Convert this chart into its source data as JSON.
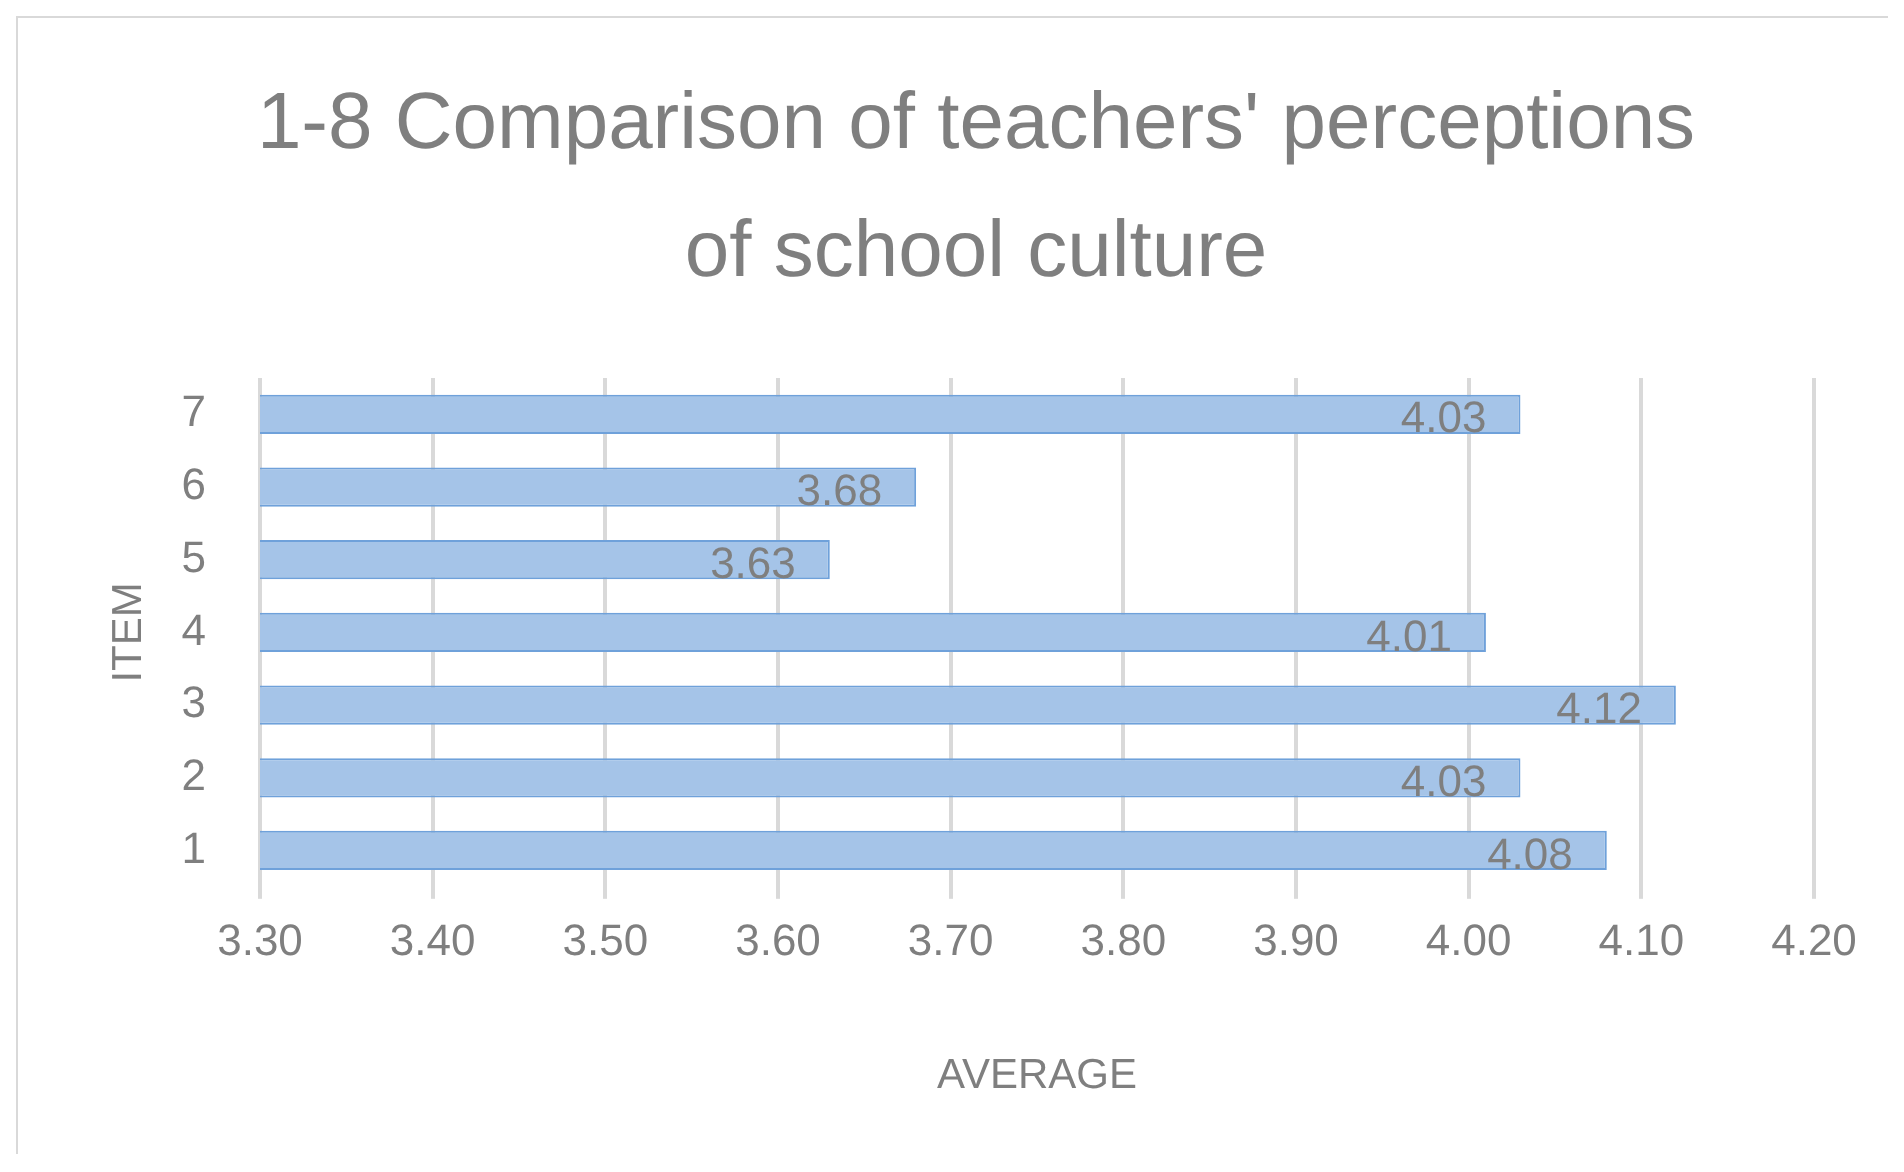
{
  "chart_data": {
    "type": "bar",
    "orientation": "horizontal",
    "title": "1-8 Comparison of teachers' perceptions of school culture",
    "xlabel": "AVERAGE",
    "ylabel": "ITEM",
    "categories": [
      "7",
      "6",
      "5",
      "4",
      "3",
      "2",
      "1"
    ],
    "values": [
      4.03,
      3.68,
      3.63,
      4.01,
      4.12,
      4.03,
      4.08
    ],
    "color": "#a5c4e8",
    "xlim": [
      3.3,
      4.2
    ],
    "xticks": [
      {
        "value": 3.3,
        "label": "3.30"
      },
      {
        "value": 3.4,
        "label": "3.40"
      },
      {
        "value": 3.5,
        "label": "3.50"
      },
      {
        "value": 3.6,
        "label": "3.60"
      },
      {
        "value": 3.7,
        "label": "3.70"
      },
      {
        "value": 3.8,
        "label": "3.80"
      },
      {
        "value": 3.9,
        "label": "3.90"
      },
      {
        "value": 4.0,
        "label": "4.00"
      },
      {
        "value": 4.1,
        "label": "4.10"
      },
      {
        "value": 4.2,
        "label": "4.20"
      }
    ],
    "grid": "x",
    "data_labels": true
  }
}
